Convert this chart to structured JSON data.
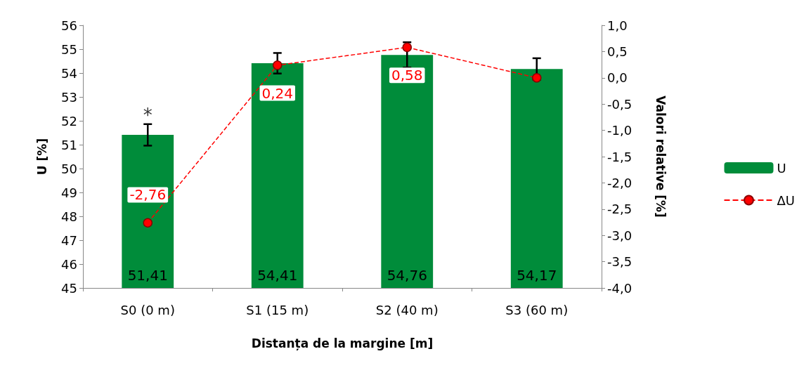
{
  "chart_data": {
    "type": "bar",
    "xlabel": "Distanța de la margine [m]",
    "ylabel": "U [%]",
    "y2label": "Valori relative [%]",
    "categories": [
      "S0 (0 m)",
      "S1 (15 m)",
      "S2 (40 m)",
      "S3 (60 m)"
    ],
    "series": [
      {
        "name": "U",
        "color": "#008c3a",
        "values": [
          51.41,
          54.41,
          54.76,
          54.17
        ],
        "errors": [
          0.45,
          0.43,
          0.53,
          0.45
        ],
        "value_labels": [
          "51,41",
          "54,41",
          "54,76",
          "54,17"
        ]
      },
      {
        "name": "ΔU",
        "type": "line",
        "axis": "y2",
        "color": "#ff0000",
        "marker": "circle",
        "line_style": "dashed",
        "values": [
          -2.76,
          0.24,
          0.58,
          0.0
        ],
        "value_labels": [
          "-2,76",
          "0,24",
          "0,58",
          null
        ]
      }
    ],
    "ylim": [
      45,
      56
    ],
    "yticks": [
      45,
      46,
      47,
      48,
      49,
      50,
      51,
      52,
      53,
      54,
      55,
      56
    ],
    "y2lim": [
      -4,
      1
    ],
    "y2ticks": [
      {
        "value": -4,
        "label": "-4,0"
      },
      {
        "value": -3.5,
        "label": "-3,5"
      },
      {
        "value": -3,
        "label": "-3,0"
      },
      {
        "value": -2.5,
        "label": "-2,5"
      },
      {
        "value": -2,
        "label": "-2,0"
      },
      {
        "value": -1.5,
        "label": "-1,5"
      },
      {
        "value": -1,
        "label": "-1,0"
      },
      {
        "value": -0.5,
        "label": "-0,5"
      },
      {
        "value": 0,
        "label": "0,0"
      },
      {
        "value": 0.5,
        "label": "0,5"
      },
      {
        "value": 1,
        "label": "1,0"
      }
    ],
    "annotations": [
      {
        "text": "*",
        "x": "S0 (0 m)",
        "y": 51.86
      }
    ],
    "grid": false,
    "legend": "right"
  }
}
